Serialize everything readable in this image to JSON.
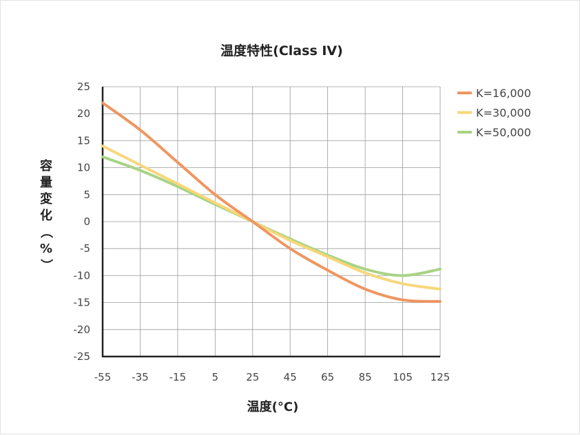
{
  "chart_data": {
    "type": "line",
    "title": "温度特性(Class IV)",
    "xlabel": "温度(°C)",
    "ylabel": "容量変化（%）",
    "xlim": [
      -55,
      125
    ],
    "ylim": [
      -25,
      25
    ],
    "x_ticks": [
      "-55",
      "-35",
      "-15",
      "5",
      "25",
      "45",
      "65",
      "85",
      "105",
      "125"
    ],
    "y_ticks": [
      "25",
      "20",
      "15",
      "10",
      "5",
      "0",
      "-5",
      "-10",
      "-15",
      "-20",
      "-25"
    ],
    "grid": true,
    "legend_position": "top-right",
    "x": [
      -55,
      -35,
      -15,
      5,
      25,
      45,
      65,
      85,
      105,
      125
    ],
    "series": [
      {
        "name": "K=16,000",
        "color": "#ef9660",
        "values": [
          22,
          17,
          11,
          5,
          0,
          -5,
          -9,
          -12.5,
          -14.5,
          -14.8
        ]
      },
      {
        "name": "K=30,000",
        "color": "#f7d77a",
        "values": [
          14,
          10.5,
          7,
          3.5,
          0,
          -3.5,
          -6.5,
          -9.5,
          -11.5,
          -12.5
        ]
      },
      {
        "name": "K=50,000",
        "color": "#a8d385",
        "values": [
          12,
          9.5,
          6.5,
          3.2,
          0,
          -3.2,
          -6.2,
          -8.8,
          -10,
          -8.8
        ]
      }
    ]
  }
}
